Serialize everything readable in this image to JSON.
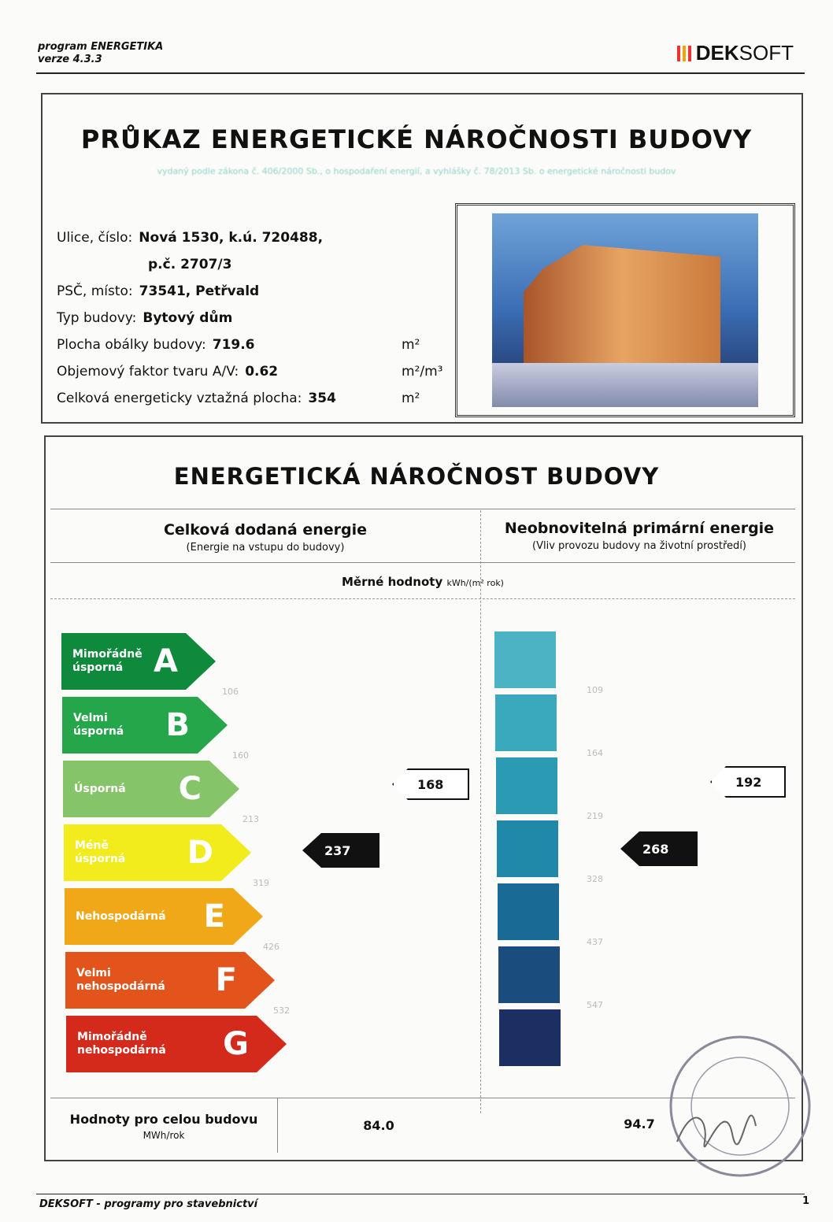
{
  "header": {
    "program": "program ENERGETIKA",
    "version": "verze 4.3.3",
    "logo_bold": "DEK",
    "logo_light": "SOFT"
  },
  "certificate": {
    "title": "PRŮKAZ ENERGETICKÉ NÁROČNOSTI BUDOVY",
    "subtitle": "vydaný podle zákona č. 406/2000 Sb., o hospodaření energií, a vyhlášky č. 78/2013 Sb. o energetické náročnosti budov"
  },
  "building": {
    "street_label": "Ulice, číslo:",
    "street_value": "Nová 1530, k.ú. 720488,",
    "street_value2": "p.č. 2707/3",
    "psc_label": "PSČ, místo:",
    "psc_value": "73541, Petřvald",
    "type_label": "Typ budovy:",
    "type_value": "Bytový dům",
    "area_label": "Plocha obálky budovy:",
    "area_value": "719.6",
    "area_unit": "m²",
    "factor_label": "Objemový faktor tvaru A/V:",
    "factor_value": "0.62",
    "factor_unit": "m²/m³",
    "ref_label": "Celková energeticky vztažná plocha:",
    "ref_value": "354",
    "ref_unit": "m²"
  },
  "performance": {
    "title": "ENERGETICKÁ NÁROČNOST BUDOVY",
    "col1_title": "Celková dodaná energie",
    "col1_sub": "(Energie na vstupu do budovy)",
    "col2_title": "Neobnovitelná primární energie",
    "col2_sub": "(Vliv provozu budovy na životní prostředí)",
    "specific_label": "Měrné hodnoty",
    "specific_unit": "kWh/(m² rok)",
    "classes": [
      {
        "letter": "A",
        "label": "Mimořádně úsporná",
        "color": "#0f8a3c"
      },
      {
        "letter": "B",
        "label": "Velmi úsporná",
        "color": "#26a64a"
      },
      {
        "letter": "C",
        "label": "Úsporná",
        "color": "#86c46a"
      },
      {
        "letter": "D",
        "label": "Méně úsporná",
        "color": "#f2ec1c"
      },
      {
        "letter": "E",
        "label": "Nehospodárná",
        "color": "#f0a818"
      },
      {
        "letter": "F",
        "label": "Velmi nehospodárná",
        "color": "#e2541c"
      },
      {
        "letter": "G",
        "label": "Mimořádně nehospodárná",
        "color": "#d42a1c"
      }
    ],
    "left_ticks": [
      "106",
      "160",
      "213",
      "319",
      "426",
      "532"
    ],
    "right_ticks": [
      "109",
      "164",
      "219",
      "328",
      "437",
      "547"
    ],
    "right_colors": [
      "#4bb3c4",
      "#3aa8bd",
      "#2b9bb4",
      "#2088a8",
      "#1a6a96",
      "#1b4c7e",
      "#1c2f63"
    ],
    "delivered_class_value": "168",
    "delivered_value": "237",
    "primary_class_value": "192",
    "primary_value": "268",
    "total_label": "Hodnoty pro celou budovu",
    "total_unit": "MWh/rok",
    "total_delivered": "84.0",
    "total_primary": "94.7"
  },
  "footer": {
    "left": "DEKSOFT - programy pro stavebnictví",
    "page": "1"
  }
}
